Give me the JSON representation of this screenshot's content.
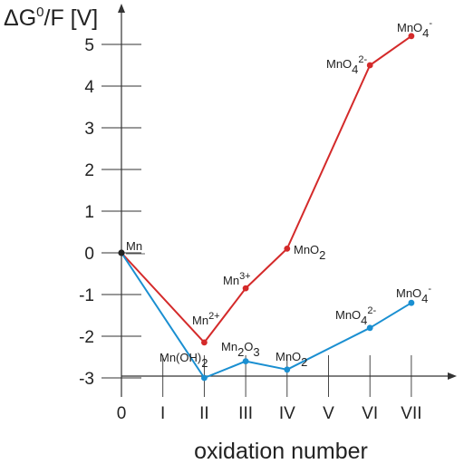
{
  "chart_data": {
    "type": "line",
    "ylabel": "ΔG⁰/F [V]",
    "xlabel": "oxidation number",
    "categories": [
      "0",
      "I",
      "II",
      "III",
      "IV",
      "V",
      "VI",
      "VII"
    ],
    "yticks": [
      "5",
      "4",
      "3",
      "2",
      "1",
      "0",
      "-1",
      "-2",
      "-3"
    ],
    "ylim": [
      -3.3,
      5.8
    ],
    "colors": {
      "red": "#d42a2a",
      "blue": "#1a8fd1",
      "origin": "#222222"
    },
    "series": [
      {
        "color": "#d42a2a",
        "points": [
          {
            "x": 0,
            "y": 0,
            "label": ""
          },
          {
            "x": 2,
            "y": -2.15,
            "label": "Mn2+"
          },
          {
            "x": 3,
            "y": -0.85,
            "label": "Mn3+"
          },
          {
            "x": 4,
            "y": 0.1,
            "label": "MnO2"
          },
          {
            "x": 6,
            "y": 4.5,
            "label": "MnO42-"
          },
          {
            "x": 7,
            "y": 5.2,
            "label": "MnO4-"
          }
        ]
      },
      {
        "color": "#1a8fd1",
        "points": [
          {
            "x": 0,
            "y": 0,
            "label": ""
          },
          {
            "x": 2,
            "y": -3.0,
            "label": "Mn(OH)2"
          },
          {
            "x": 3,
            "y": -2.6,
            "label": "Mn2O3"
          },
          {
            "x": 4,
            "y": -2.8,
            "label": "MnO2"
          },
          {
            "x": 6,
            "y": -1.8,
            "label": "MnO42-"
          },
          {
            "x": 7,
            "y": -1.2,
            "label": "MnO4-"
          }
        ]
      }
    ],
    "origin_label": "Mn",
    "grid": true
  }
}
